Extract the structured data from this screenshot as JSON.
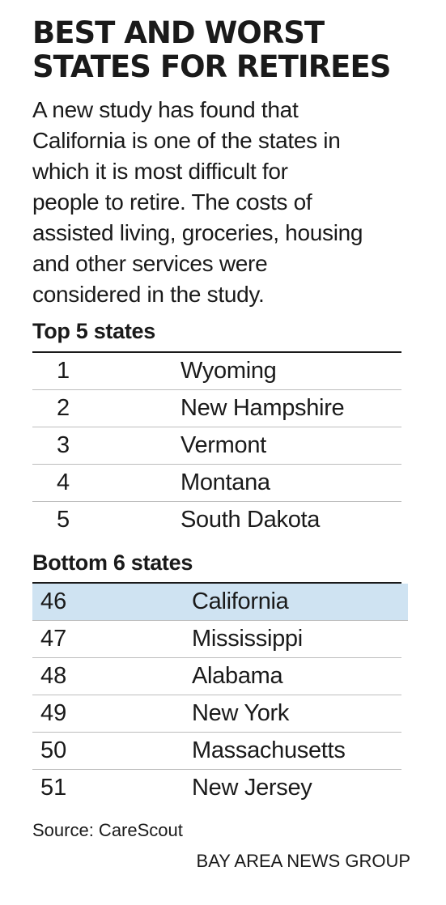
{
  "title_lines": [
    "BEST AND WORST",
    "STATES FOR RETIREES"
  ],
  "intro_lines": [
    "A new study has found that",
    "California is one of the states in",
    "which it is most difficult for",
    "people to retire. The costs of",
    "assisted living, groceries, housing",
    "and other services were",
    "considered in the study."
  ],
  "chart_data": {
    "type": "table",
    "title": "BEST AND WORST STATES FOR RETIREES",
    "tables": [
      {
        "heading": "Top 5 states",
        "rows": [
          {
            "rank": "1",
            "state": "Wyoming"
          },
          {
            "rank": "2",
            "state": "New Hampshire"
          },
          {
            "rank": "3",
            "state": "Vermont"
          },
          {
            "rank": "4",
            "state": "Montana"
          },
          {
            "rank": "5",
            "state": "South Dakota"
          }
        ]
      },
      {
        "heading": "Bottom 6 states",
        "rows": [
          {
            "rank": "46",
            "state": "California",
            "highlighted": true
          },
          {
            "rank": "47",
            "state": "Mississippi"
          },
          {
            "rank": "48",
            "state": "Alabama"
          },
          {
            "rank": "49",
            "state": "New York"
          },
          {
            "rank": "50",
            "state": "Massachusetts"
          },
          {
            "rank": "51",
            "state": "New Jersey"
          }
        ]
      }
    ],
    "highlight_color": "#cfe3f2"
  },
  "source": "Source: CareScout",
  "credit": "BAY AREA NEWS GROUP"
}
